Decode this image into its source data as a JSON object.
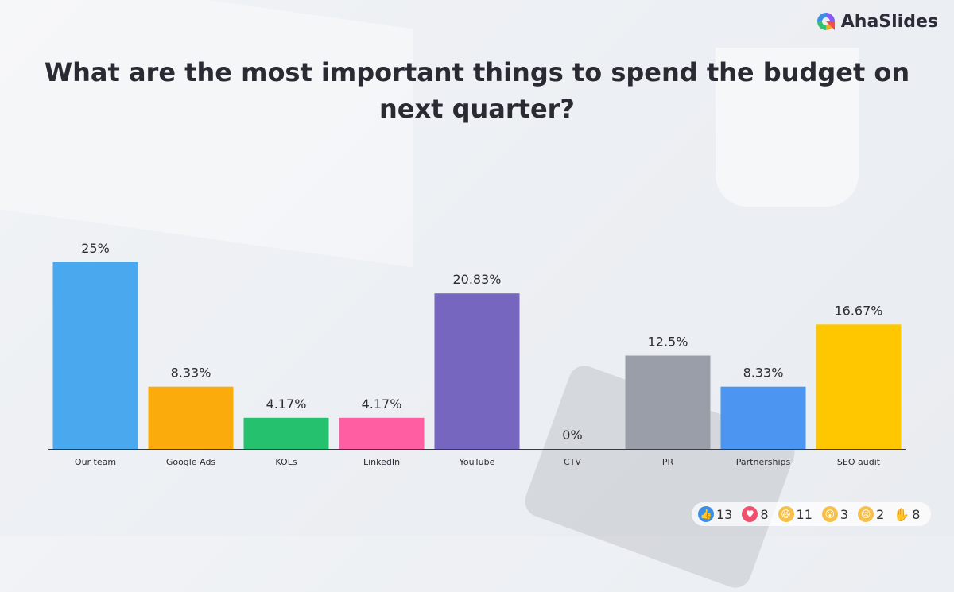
{
  "brand": {
    "name": "AhaSlides"
  },
  "title": "What are the most important things to spend the budget on next quarter?",
  "chart_data": {
    "type": "bar",
    "categories": [
      "Our team",
      "Google Ads",
      "KOLs",
      "LinkedIn",
      "YouTube",
      "CTV",
      "PR",
      "Partnerships",
      "SEO audit"
    ],
    "values": [
      25,
      8.33,
      4.17,
      4.17,
      20.83,
      0,
      12.5,
      8.33,
      16.67
    ],
    "data_labels": [
      "25%",
      "8.33%",
      "4.17%",
      "4.17%",
      "20.83%",
      "0%",
      "12.5%",
      "8.33%",
      "16.67%"
    ],
    "colors": [
      "#4aa8ef",
      "#fbab0c",
      "#25c16f",
      "#ff5fa2",
      "#7766bf",
      "#8a8fa0",
      "#9a9ea8",
      "#4c95f0",
      "#ffc700"
    ],
    "unit": "%",
    "ylim": [
      0,
      25
    ],
    "grid": false
  },
  "reactions": [
    {
      "icon": "thumbs-up-icon",
      "count": "13",
      "color": "#3b8fe6"
    },
    {
      "icon": "heart-icon",
      "count": "8",
      "color": "#f0506e"
    },
    {
      "icon": "laugh-icon",
      "count": "11",
      "color": "#f7c04a"
    },
    {
      "icon": "wow-icon",
      "count": "3",
      "color": "#f7c04a"
    },
    {
      "icon": "sad-icon",
      "count": "2",
      "color": "#f7c04a"
    },
    {
      "icon": "hand-icon",
      "count": "8",
      "color": "#333333"
    }
  ]
}
